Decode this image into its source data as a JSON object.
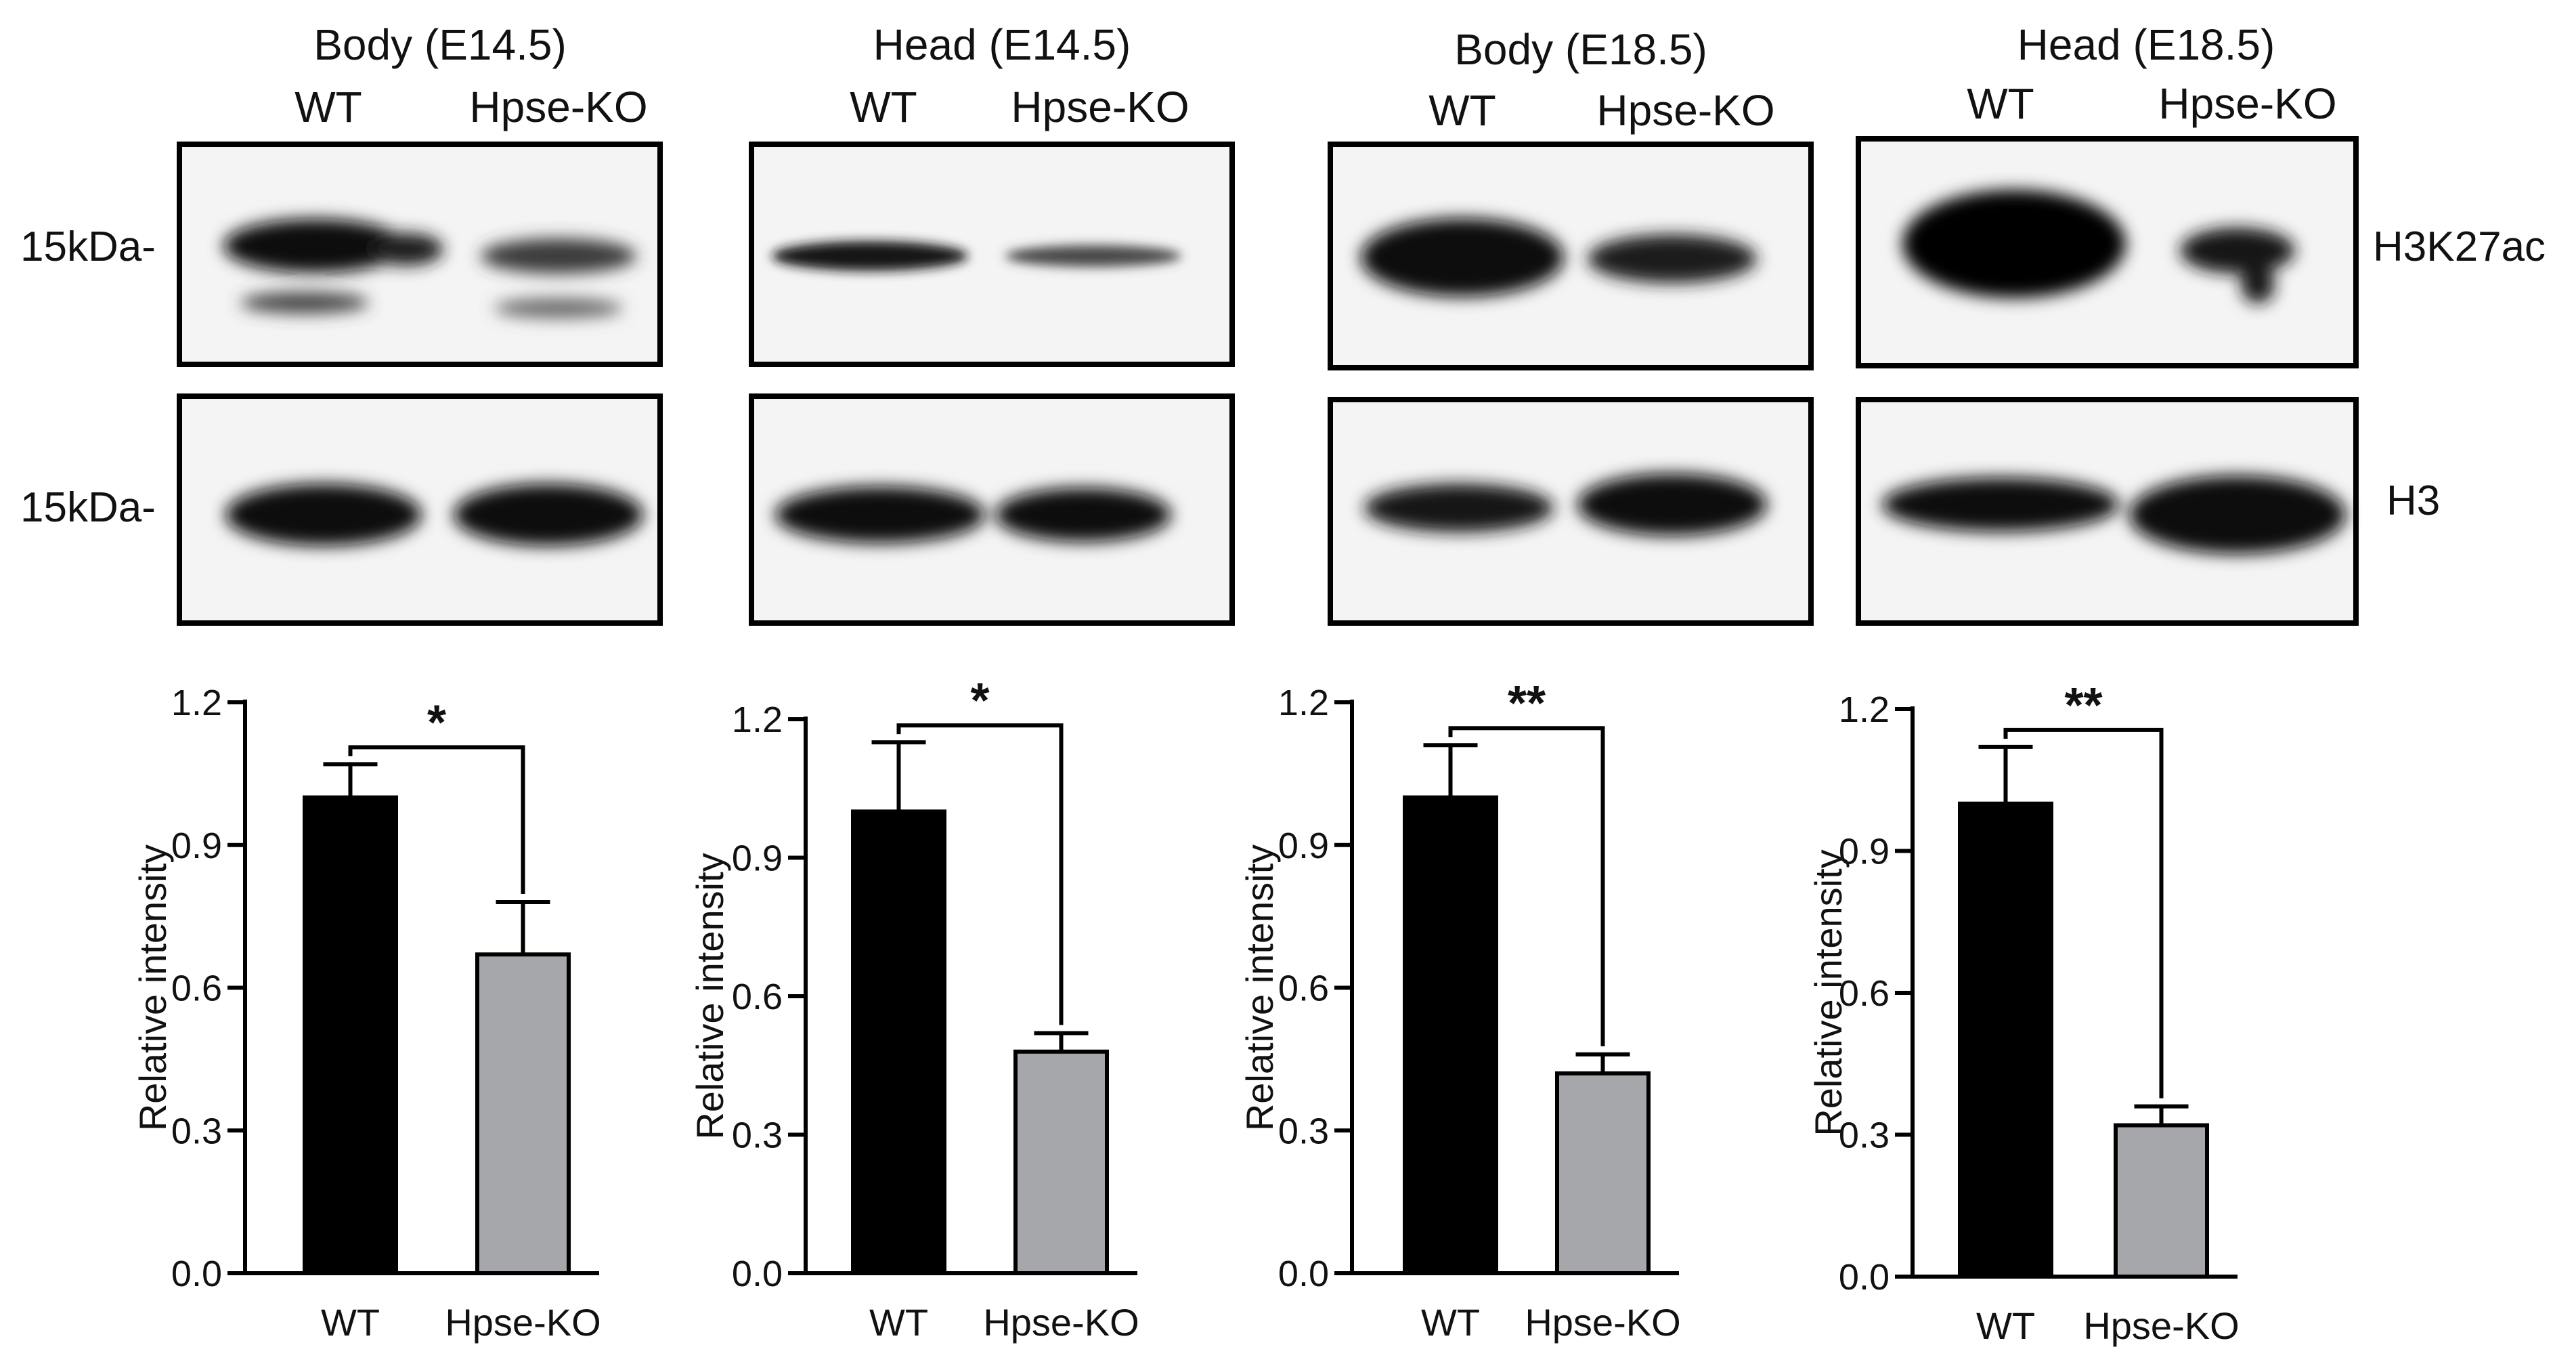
{
  "blots": [
    {
      "title": "Body (E14.5)",
      "lanes": [
        "WT",
        "Hpse-KO"
      ]
    },
    {
      "title": "Head (E14.5)",
      "lanes": [
        "WT",
        "Hpse-KO"
      ]
    },
    {
      "title": "Body (E18.5)",
      "lanes": [
        "WT",
        "Hpse-KO"
      ]
    },
    {
      "title": "Head (E18.5)",
      "lanes": [
        "WT",
        "Hpse-KO"
      ]
    }
  ],
  "markers": [
    "15kDa-",
    "15kDa-"
  ],
  "bands": [
    "H3K27ac",
    "H3"
  ],
  "colors": {
    "wt": "#000000",
    "ko": "#a6a7ab",
    "blot_bg": "#f4f4f4"
  },
  "chart_data": [
    {
      "type": "bar",
      "categories": [
        "WT",
        "Hpse-KO"
      ],
      "values": [
        1.0,
        0.67
      ],
      "errors": [
        0.07,
        0.11
      ],
      "significance": "*",
      "ylabel": "Relative intensity",
      "ylim": [
        0,
        1.2
      ],
      "yticks": [
        "0.0",
        "0.3",
        "0.6",
        "0.9",
        "1.2"
      ]
    },
    {
      "type": "bar",
      "categories": [
        "WT",
        "Hpse-KO"
      ],
      "values": [
        1.0,
        0.48
      ],
      "errors": [
        0.15,
        0.04
      ],
      "significance": "*",
      "ylabel": "Relative intensity",
      "ylim": [
        0,
        1.2
      ],
      "yticks": [
        "0.0",
        "0.3",
        "0.6",
        "0.9",
        "1.2"
      ]
    },
    {
      "type": "bar",
      "categories": [
        "WT",
        "Hpse-KO"
      ],
      "values": [
        1.0,
        0.42
      ],
      "errors": [
        0.11,
        0.04
      ],
      "significance": "**",
      "ylabel": "Relative intensity",
      "ylim": [
        0,
        1.2
      ],
      "yticks": [
        "0.0",
        "0.3",
        "0.6",
        "0.9",
        "1.2"
      ]
    },
    {
      "type": "bar",
      "categories": [
        "WT",
        "Hpse-KO"
      ],
      "values": [
        1.0,
        0.32
      ],
      "errors": [
        0.12,
        0.04
      ],
      "significance": "**",
      "ylabel": "Relative intensity",
      "ylim": [
        0,
        1.2
      ],
      "yticks": [
        "0.0",
        "0.3",
        "0.6",
        "0.9",
        "1.2"
      ]
    }
  ]
}
